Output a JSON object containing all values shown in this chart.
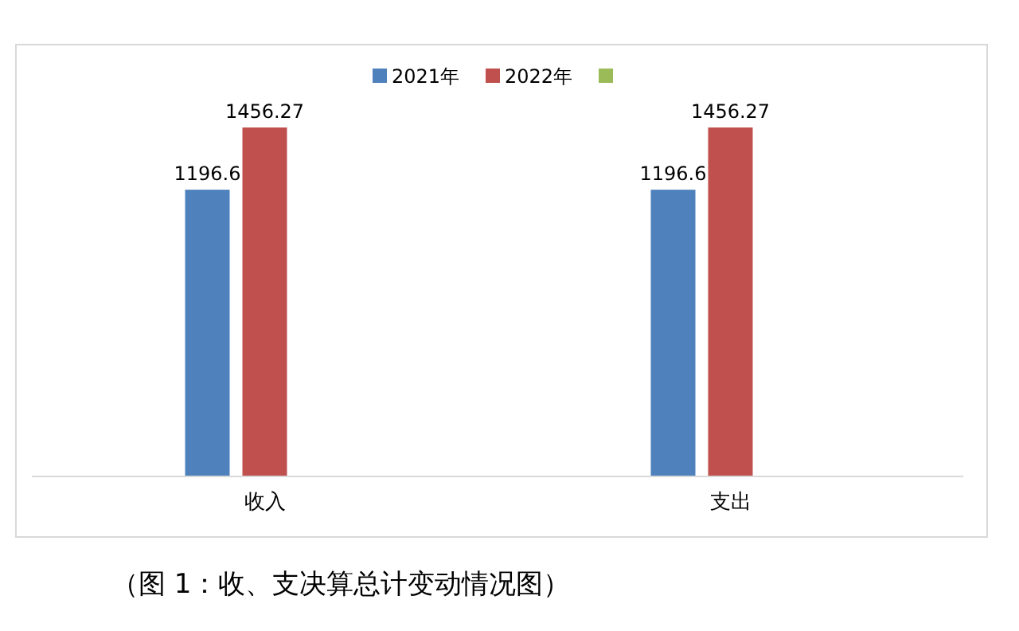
{
  "chart_data": {
    "type": "bar",
    "categories": [
      "收入",
      "支出"
    ],
    "series": [
      {
        "name": "2021年",
        "color": "#4f81bd",
        "values": [
          1196.6,
          1196.6
        ]
      },
      {
        "name": "2022年",
        "color": "#c0504d",
        "values": [
          1456.27,
          1456.27
        ]
      },
      {
        "color": "#9bbb59",
        "values": [
          null,
          null
        ]
      }
    ],
    "data_labels": true,
    "legend": "top",
    "annotations": [
      "（图 1：收、支决算总计变动情况图）"
    ]
  }
}
